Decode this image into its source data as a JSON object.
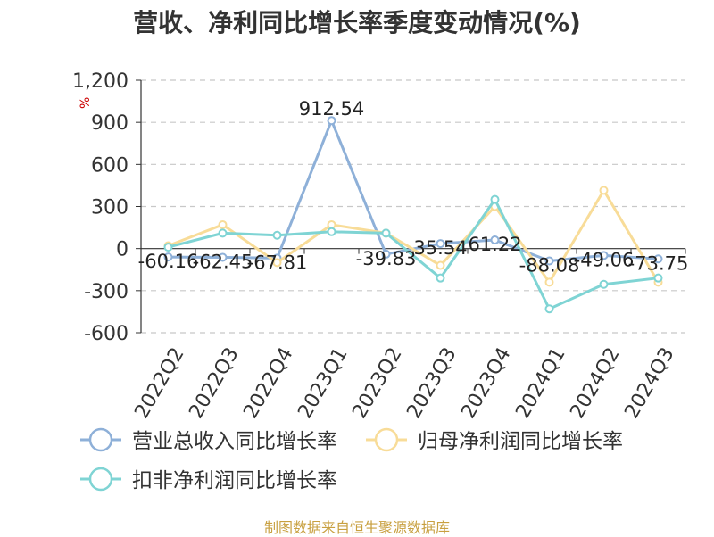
{
  "chart_data": {
    "type": "line",
    "title": "营收、净利同比增长率季度变动情况(%)",
    "unit": "%",
    "categories": [
      "2022Q2",
      "2022Q3",
      "2022Q4",
      "2023Q1",
      "2023Q2",
      "2023Q3",
      "2023Q4",
      "2024Q1",
      "2024Q2",
      "2024Q3"
    ],
    "y_ticks": [
      "1,200",
      "900",
      "600",
      "300",
      "0",
      "-300",
      "-600"
    ],
    "ylim": [
      -600,
      1200
    ],
    "grid": true,
    "legend_position": "bottom",
    "series": [
      {
        "name": "营业总收入同比增长率",
        "color": "#8eb0d8",
        "values": [
          -60.16,
          -62.45,
          -67.81,
          912.54,
          -39.83,
          35.54,
          61.22,
          -88.08,
          -49.06,
          -73.75
        ],
        "labels": [
          "-60.16",
          "-62.45",
          "-67.81",
          "912.54",
          "-39.83",
          "35.54",
          "61.22",
          "-88.08",
          "-49.06",
          "-73.75"
        ]
      },
      {
        "name": "归母净利润同比增长率",
        "color": "#f8dc98",
        "values": [
          20,
          170,
          -100,
          170,
          110,
          -120,
          300,
          -240,
          415,
          -240
        ]
      },
      {
        "name": "扣非净利润同比增长率",
        "color": "#7fd4d4",
        "values": [
          10,
          110,
          95,
          120,
          110,
          -210,
          350,
          -430,
          -255,
          -210
        ]
      }
    ]
  },
  "footer": {
    "source": "制图数据来自恒生聚源数据库"
  }
}
